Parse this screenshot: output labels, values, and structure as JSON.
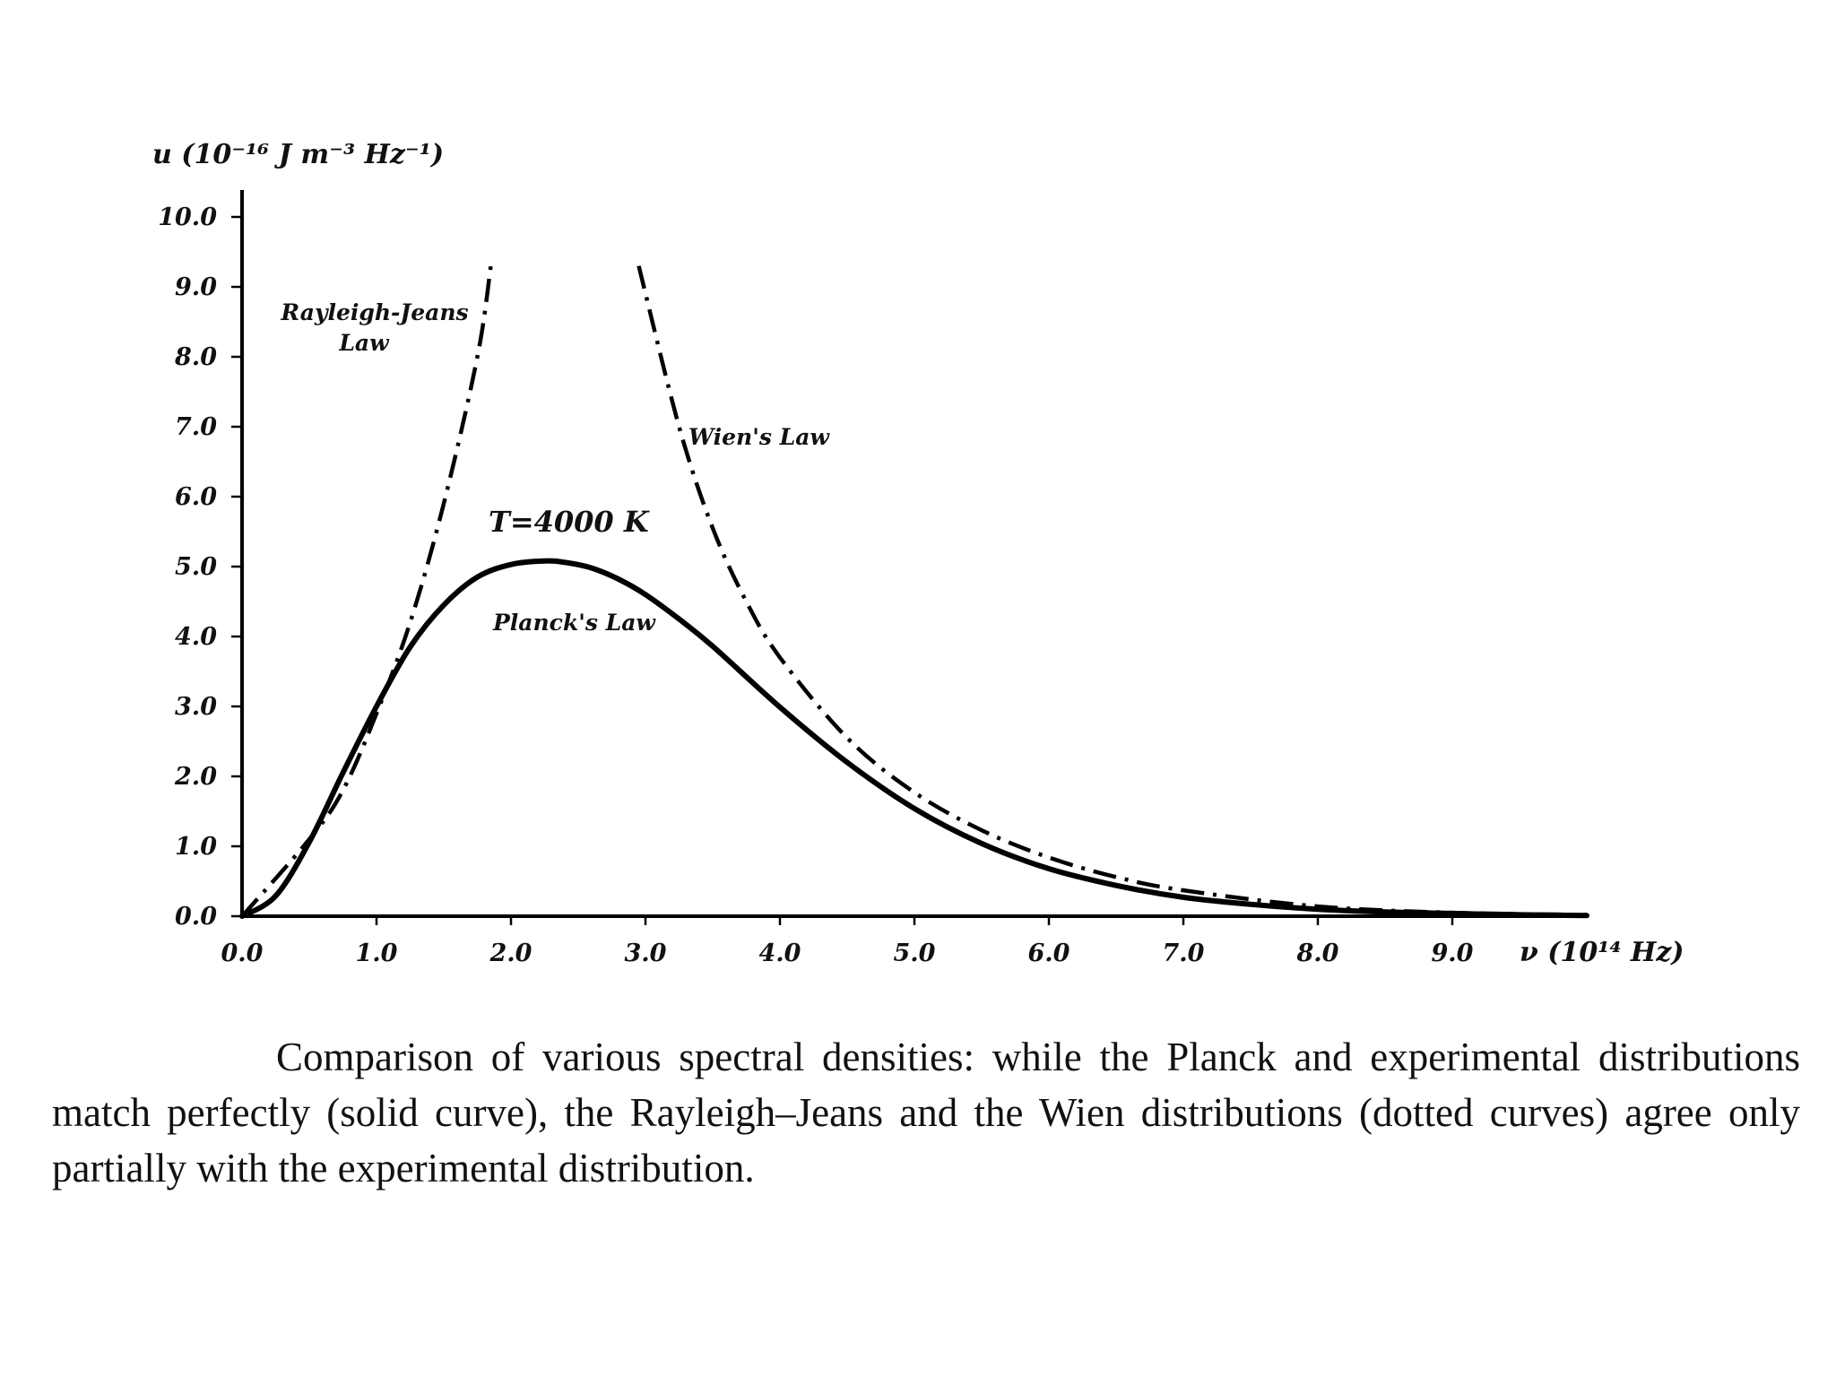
{
  "chart_data": {
    "type": "line",
    "ylabel": "u (10⁻¹⁶ J m⁻³ Hz⁻¹)",
    "xlabel": "ν (10¹⁴ Hz)",
    "xlim": [
      0,
      10
    ],
    "ylim": [
      0,
      10
    ],
    "xticks": [
      "0.0",
      "1.0",
      "2.0",
      "3.0",
      "4.0",
      "5.0",
      "6.0",
      "7.0",
      "8.0",
      "9.0"
    ],
    "yticks": [
      "0.0",
      "1.0",
      "2.0",
      "3.0",
      "4.0",
      "5.0",
      "6.0",
      "7.0",
      "8.0",
      "9.0",
      "10.0"
    ],
    "series": [
      {
        "name": "Planck's Law",
        "style": "solid",
        "x": [
          0.0,
          0.25,
          0.5,
          0.75,
          1.0,
          1.25,
          1.5,
          1.75,
          2.0,
          2.25,
          2.4,
          2.6,
          2.8,
          3.0,
          3.25,
          3.5,
          4.0,
          4.5,
          5.0,
          5.5,
          6.0,
          6.5,
          7.0,
          7.5,
          8.0,
          8.5,
          9.0,
          9.5,
          10.0
        ],
        "y": [
          0.0,
          0.29,
          1.06,
          2.05,
          3.0,
          3.85,
          4.45,
          4.85,
          5.03,
          5.08,
          5.06,
          4.98,
          4.82,
          4.6,
          4.25,
          3.86,
          2.99,
          2.2,
          1.54,
          1.04,
          0.68,
          0.44,
          0.27,
          0.17,
          0.1,
          0.06,
          0.04,
          0.02,
          0.01
        ]
      },
      {
        "name": "Rayleigh-Jeans Law",
        "style": "dash-dot",
        "x": [
          0.0,
          0.5,
          0.75,
          1.0,
          1.25,
          1.5,
          1.75,
          1.85
        ],
        "y": [
          0.0,
          1.1,
          1.8,
          2.9,
          4.2,
          5.9,
          8.0,
          9.3
        ]
      },
      {
        "name": "Wien's Law",
        "style": "dash-dot",
        "x": [
          2.95,
          3.25,
          3.5,
          3.75,
          4.0,
          4.5,
          5.0,
          5.5,
          6.0,
          6.5,
          7.0,
          8.0,
          9.0,
          10.0
        ],
        "y": [
          9.3,
          7.0,
          5.55,
          4.5,
          3.7,
          2.55,
          1.77,
          1.23,
          0.84,
          0.56,
          0.37,
          0.14,
          0.05,
          0.02
        ]
      }
    ],
    "annotations": {
      "rj": [
        "Rayleigh-Jeans",
        "Law"
      ],
      "wien": "Wien's Law",
      "planck": "Planck's Law",
      "temperature": "T=4000 K"
    },
    "grid": false,
    "legend": "none"
  },
  "caption": "Comparison of various spectral densities: while the Planck and experimental distributions match perfectly (solid curve), the Rayleigh–Jeans and the Wien distributions (dotted curves) agree only partially with the experimental distribution."
}
